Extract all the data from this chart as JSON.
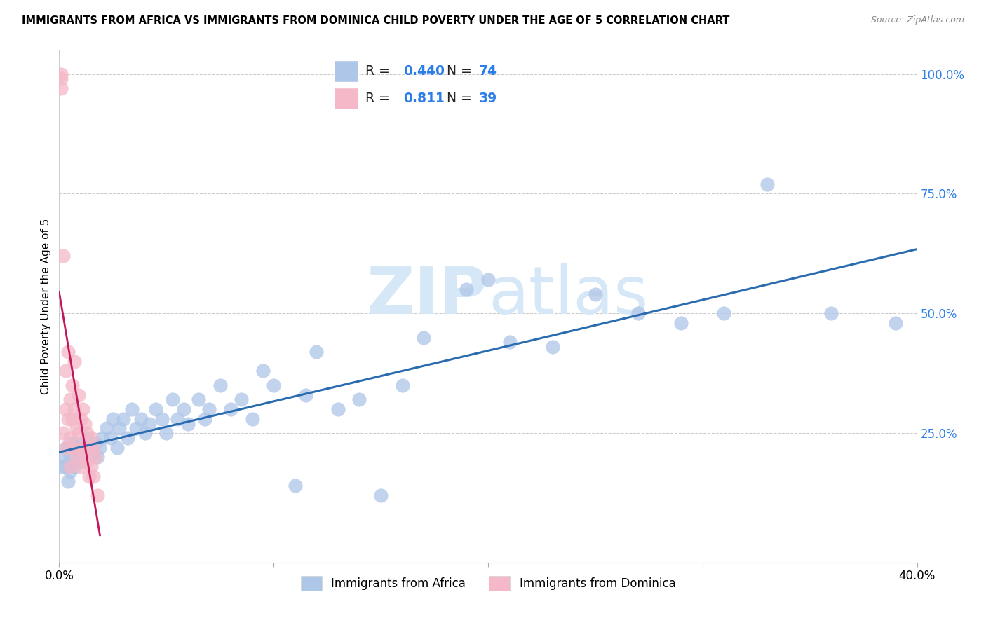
{
  "title": "IMMIGRANTS FROM AFRICA VS IMMIGRANTS FROM DOMINICA CHILD POVERTY UNDER THE AGE OF 5 CORRELATION CHART",
  "source": "Source: ZipAtlas.com",
  "ylabel": "Child Poverty Under the Age of 5",
  "xlim": [
    0.0,
    0.4
  ],
  "ylim": [
    -0.02,
    1.05
  ],
  "blue_R": 0.44,
  "blue_N": 74,
  "pink_R": 0.811,
  "pink_N": 39,
  "blue_color": "#aec6e8",
  "pink_color": "#f4b8c8",
  "blue_line_color": "#2b6cb0",
  "pink_line_color": "#c2185b",
  "blue_label_color": "#2b7de8",
  "watermark_color": "#d6e8f7",
  "blue_scatter_x": [
    0.001,
    0.002,
    0.003,
    0.003,
    0.004,
    0.004,
    0.005,
    0.005,
    0.006,
    0.006,
    0.007,
    0.007,
    0.008,
    0.008,
    0.009,
    0.01,
    0.01,
    0.011,
    0.012,
    0.013,
    0.014,
    0.015,
    0.016,
    0.017,
    0.018,
    0.019,
    0.02,
    0.022,
    0.024,
    0.025,
    0.027,
    0.028,
    0.03,
    0.032,
    0.034,
    0.036,
    0.038,
    0.04,
    0.042,
    0.045,
    0.048,
    0.05,
    0.053,
    0.055,
    0.058,
    0.06,
    0.065,
    0.068,
    0.07,
    0.075,
    0.08,
    0.085,
    0.09,
    0.095,
    0.1,
    0.11,
    0.115,
    0.12,
    0.13,
    0.14,
    0.15,
    0.16,
    0.17,
    0.19,
    0.2,
    0.21,
    0.23,
    0.25,
    0.27,
    0.29,
    0.31,
    0.33,
    0.36,
    0.39
  ],
  "blue_scatter_y": [
    0.18,
    0.2,
    0.22,
    0.18,
    0.15,
    0.22,
    0.17,
    0.2,
    0.19,
    0.23,
    0.21,
    0.18,
    0.2,
    0.23,
    0.22,
    0.19,
    0.21,
    0.2,
    0.22,
    0.24,
    0.2,
    0.22,
    0.21,
    0.23,
    0.2,
    0.22,
    0.24,
    0.26,
    0.24,
    0.28,
    0.22,
    0.26,
    0.28,
    0.24,
    0.3,
    0.26,
    0.28,
    0.25,
    0.27,
    0.3,
    0.28,
    0.25,
    0.32,
    0.28,
    0.3,
    0.27,
    0.32,
    0.28,
    0.3,
    0.35,
    0.3,
    0.32,
    0.28,
    0.38,
    0.35,
    0.14,
    0.33,
    0.42,
    0.3,
    0.32,
    0.12,
    0.35,
    0.45,
    0.55,
    0.57,
    0.44,
    0.43,
    0.54,
    0.5,
    0.48,
    0.5,
    0.77,
    0.5,
    0.48
  ],
  "pink_scatter_x": [
    0.001,
    0.001,
    0.001,
    0.002,
    0.002,
    0.003,
    0.003,
    0.003,
    0.004,
    0.004,
    0.005,
    0.005,
    0.005,
    0.006,
    0.006,
    0.006,
    0.007,
    0.007,
    0.008,
    0.008,
    0.009,
    0.009,
    0.01,
    0.01,
    0.01,
    0.011,
    0.011,
    0.012,
    0.012,
    0.013,
    0.013,
    0.014,
    0.014,
    0.015,
    0.015,
    0.016,
    0.016,
    0.017,
    0.018
  ],
  "pink_scatter_y": [
    0.97,
    0.99,
    1.0,
    0.62,
    0.25,
    0.38,
    0.3,
    0.22,
    0.42,
    0.28,
    0.32,
    0.24,
    0.18,
    0.35,
    0.28,
    0.22,
    0.4,
    0.3,
    0.26,
    0.2,
    0.33,
    0.25,
    0.28,
    0.22,
    0.18,
    0.3,
    0.22,
    0.27,
    0.2,
    0.25,
    0.19,
    0.22,
    0.16,
    0.24,
    0.18,
    0.22,
    0.16,
    0.2,
    0.12
  ],
  "pink_line_x_start": 0.0,
  "pink_line_x_end": 0.019,
  "blue_line_x_start": 0.0,
  "blue_line_x_end": 0.4
}
